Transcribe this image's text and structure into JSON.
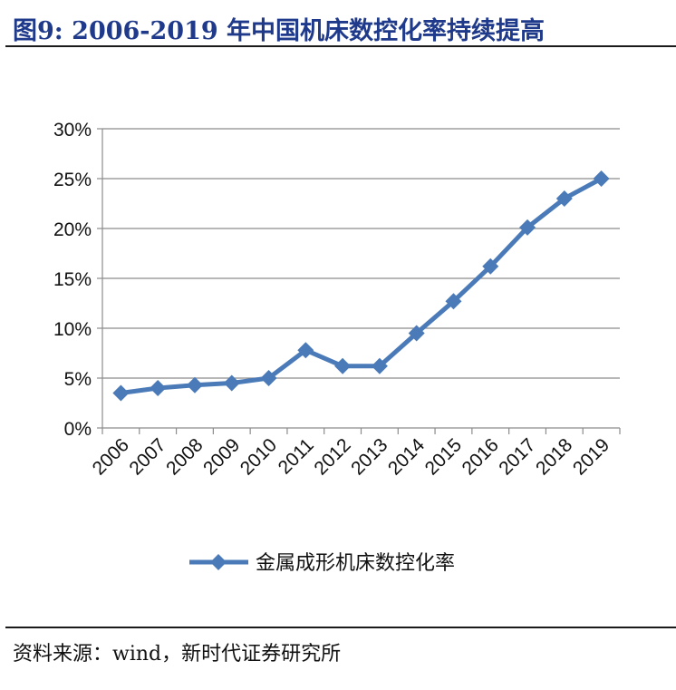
{
  "figure": {
    "title": "图9:    2006-2019 年中国机床数控化率持续提高",
    "source": "资料来源：wind，新时代证券研究所"
  },
  "chart_data": {
    "type": "line",
    "categories": [
      "2006",
      "2007",
      "2008",
      "2009",
      "2010",
      "2011",
      "2012",
      "2013",
      "2014",
      "2015",
      "2016",
      "2017",
      "2018",
      "2019"
    ],
    "series": [
      {
        "name": "金属成形机床数控化率",
        "color": "#4a7ab8",
        "values": [
          3.5,
          4.0,
          4.3,
          4.5,
          5.0,
          7.8,
          6.2,
          6.2,
          9.5,
          12.7,
          16.2,
          20.1,
          23.0,
          25.0
        ]
      }
    ],
    "y_ticks": [
      "0%",
      "5%",
      "10%",
      "15%",
      "20%",
      "25%",
      "30%"
    ],
    "ylim": [
      0,
      30
    ],
    "y_unit": "%",
    "grid": true,
    "legend": "bottom-center",
    "marker": "diamond"
  }
}
